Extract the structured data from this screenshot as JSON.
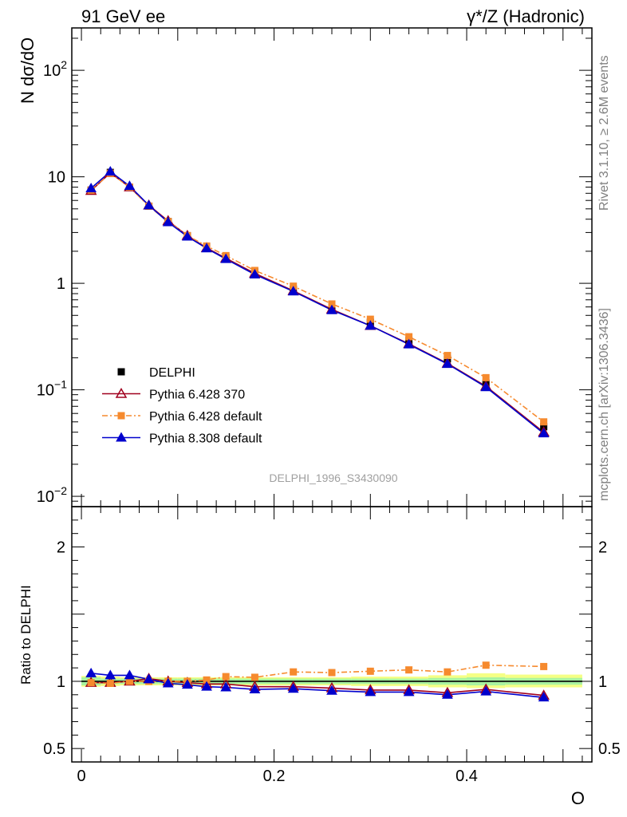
{
  "header": {
    "left": "91 GeV ee",
    "right": "γ*/Z (Hadronic)"
  },
  "side": {
    "rivet": "Rivet 3.1.10, ≥ 2.6M events",
    "mcplots": "mcplots.cern.ch [arXiv:1306.3436]"
  },
  "chart_data": [
    {
      "type": "line",
      "panel": "main",
      "ylabel": "N dσ/dO",
      "yscale": "log",
      "ylim": [
        0.008,
        250
      ],
      "xlim": [
        -0.01,
        0.53
      ],
      "yticks": [
        {
          "v": 0.01,
          "mant": "10",
          "exp": "−2"
        },
        {
          "v": 0.1,
          "mant": "10",
          "exp": "−1"
        },
        {
          "v": 1,
          "mant": "1",
          "exp": ""
        },
        {
          "v": 10,
          "mant": "10",
          "exp": ""
        },
        {
          "v": 100,
          "mant": "10",
          "exp": "2"
        }
      ],
      "watermark": "DELPHI_1996_S3430090",
      "legend_position": "lower-left",
      "x": [
        0.01,
        0.03,
        0.05,
        0.07,
        0.09,
        0.11,
        0.13,
        0.15,
        0.18,
        0.22,
        0.26,
        0.3,
        0.34,
        0.38,
        0.42,
        0.48
      ],
      "series": [
        {
          "name": "DELPHI",
          "color": "#000000",
          "marker": "square",
          "line": "none",
          "values": [
            7.5,
            11.0,
            8.0,
            5.3,
            3.8,
            2.8,
            2.2,
            1.75,
            1.28,
            0.88,
            0.6,
            0.43,
            0.29,
            0.195,
            0.115,
            0.045
          ]
        },
        {
          "name": "Pythia 6.428 370",
          "color": "#a0001e",
          "marker": "open-triangle",
          "line": "solid",
          "values": [
            7.4,
            10.9,
            8.0,
            5.4,
            3.85,
            2.8,
            2.15,
            1.72,
            1.24,
            0.85,
            0.57,
            0.4,
            0.27,
            0.177,
            0.108,
            0.04
          ]
        },
        {
          "name": "Pythia 6.428 default",
          "color": "#f68a2e",
          "marker": "square",
          "line": "dashdot",
          "values": [
            7.5,
            10.8,
            8.0,
            5.3,
            3.8,
            2.8,
            2.24,
            1.82,
            1.32,
            0.94,
            0.64,
            0.46,
            0.315,
            0.21,
            0.13,
            0.05
          ]
        },
        {
          "name": "Pythia 8.308 default",
          "color": "#0000cd",
          "marker": "triangle",
          "line": "solid",
          "values": [
            7.8,
            11.2,
            8.2,
            5.4,
            3.75,
            2.75,
            2.13,
            1.69,
            1.21,
            0.84,
            0.56,
            0.4,
            0.267,
            0.175,
            0.106,
            0.039
          ]
        }
      ]
    },
    {
      "type": "line",
      "panel": "ratio",
      "ylabel": "Ratio to DELPHI",
      "xlabel": "O",
      "ylim": [
        0.4,
        2.3
      ],
      "xlim": [
        -0.01,
        0.53
      ],
      "xticks": [
        {
          "v": 0,
          "label": "0"
        },
        {
          "v": 0.2,
          "label": "0.2"
        },
        {
          "v": 0.4,
          "label": "0.4"
        }
      ],
      "yticks": [
        {
          "v": 0.5,
          "label": "0.5"
        },
        {
          "v": 1,
          "label": "1"
        },
        {
          "v": 2,
          "label": "2"
        }
      ],
      "band_inner": [
        {
          "x0": 0.0,
          "x1": 0.02,
          "lo": 0.97,
          "hi": 1.03
        },
        {
          "x0": 0.02,
          "x1": 0.04,
          "lo": 0.98,
          "hi": 1.02
        },
        {
          "x0": 0.04,
          "x1": 0.06,
          "lo": 0.98,
          "hi": 1.02
        },
        {
          "x0": 0.06,
          "x1": 0.08,
          "lo": 0.98,
          "hi": 1.02
        },
        {
          "x0": 0.08,
          "x1": 0.1,
          "lo": 0.98,
          "hi": 1.02
        },
        {
          "x0": 0.1,
          "x1": 0.12,
          "lo": 0.98,
          "hi": 1.02
        },
        {
          "x0": 0.12,
          "x1": 0.14,
          "lo": 0.98,
          "hi": 1.02
        },
        {
          "x0": 0.14,
          "x1": 0.16,
          "lo": 0.98,
          "hi": 1.02
        },
        {
          "x0": 0.16,
          "x1": 0.2,
          "lo": 0.98,
          "hi": 1.02
        },
        {
          "x0": 0.2,
          "x1": 0.24,
          "lo": 0.98,
          "hi": 1.02
        },
        {
          "x0": 0.24,
          "x1": 0.28,
          "lo": 0.98,
          "hi": 1.02
        },
        {
          "x0": 0.28,
          "x1": 0.32,
          "lo": 0.98,
          "hi": 1.02
        },
        {
          "x0": 0.32,
          "x1": 0.36,
          "lo": 0.98,
          "hi": 1.02
        },
        {
          "x0": 0.36,
          "x1": 0.4,
          "lo": 0.975,
          "hi": 1.025
        },
        {
          "x0": 0.4,
          "x1": 0.44,
          "lo": 0.97,
          "hi": 1.03
        },
        {
          "x0": 0.44,
          "x1": 0.52,
          "lo": 0.975,
          "hi": 1.025
        }
      ],
      "band_outer": [
        {
          "x0": 0.0,
          "x1": 0.02,
          "lo": 0.96,
          "hi": 1.04
        },
        {
          "x0": 0.02,
          "x1": 0.04,
          "lo": 0.965,
          "hi": 1.035
        },
        {
          "x0": 0.04,
          "x1": 0.06,
          "lo": 0.97,
          "hi": 1.03
        },
        {
          "x0": 0.06,
          "x1": 0.08,
          "lo": 0.97,
          "hi": 1.03
        },
        {
          "x0": 0.08,
          "x1": 0.1,
          "lo": 0.97,
          "hi": 1.03
        },
        {
          "x0": 0.1,
          "x1": 0.12,
          "lo": 0.97,
          "hi": 1.03
        },
        {
          "x0": 0.12,
          "x1": 0.14,
          "lo": 0.97,
          "hi": 1.03
        },
        {
          "x0": 0.14,
          "x1": 0.16,
          "lo": 0.97,
          "hi": 1.03
        },
        {
          "x0": 0.16,
          "x1": 0.2,
          "lo": 0.97,
          "hi": 1.03
        },
        {
          "x0": 0.2,
          "x1": 0.24,
          "lo": 0.97,
          "hi": 1.03
        },
        {
          "x0": 0.24,
          "x1": 0.28,
          "lo": 0.97,
          "hi": 1.03
        },
        {
          "x0": 0.28,
          "x1": 0.32,
          "lo": 0.965,
          "hi": 1.035
        },
        {
          "x0": 0.32,
          "x1": 0.36,
          "lo": 0.965,
          "hi": 1.035
        },
        {
          "x0": 0.36,
          "x1": 0.4,
          "lo": 0.955,
          "hi": 1.045
        },
        {
          "x0": 0.4,
          "x1": 0.44,
          "lo": 0.95,
          "hi": 1.06
        },
        {
          "x0": 0.44,
          "x1": 0.52,
          "lo": 0.955,
          "hi": 1.05
        }
      ],
      "x": [
        0.01,
        0.03,
        0.05,
        0.07,
        0.09,
        0.11,
        0.13,
        0.15,
        0.18,
        0.22,
        0.26,
        0.3,
        0.34,
        0.38,
        0.42,
        0.48
      ],
      "series": [
        {
          "name": "Pythia 6.428 370",
          "color": "#a0001e",
          "marker": "open-triangle",
          "line": "solid",
          "values": [
            0.99,
            0.99,
            1.0,
            1.02,
            1.0,
            0.99,
            0.98,
            0.98,
            0.96,
            0.96,
            0.95,
            0.935,
            0.935,
            0.915,
            0.94,
            0.895
          ]
        },
        {
          "name": "Pythia 6.428 default",
          "color": "#f68a2e",
          "marker": "square",
          "line": "dashdot",
          "values": [
            0.99,
            0.985,
            1.0,
            1.0,
            1.0,
            1.0,
            1.01,
            1.035,
            1.03,
            1.07,
            1.065,
            1.075,
            1.085,
            1.07,
            1.12,
            1.11
          ]
        },
        {
          "name": "Pythia 8.308 default",
          "color": "#0000cd",
          "marker": "triangle",
          "line": "solid",
          "values": [
            1.06,
            1.045,
            1.045,
            1.015,
            0.985,
            0.975,
            0.96,
            0.955,
            0.94,
            0.945,
            0.93,
            0.92,
            0.92,
            0.9,
            0.925,
            0.88
          ]
        }
      ]
    }
  ]
}
